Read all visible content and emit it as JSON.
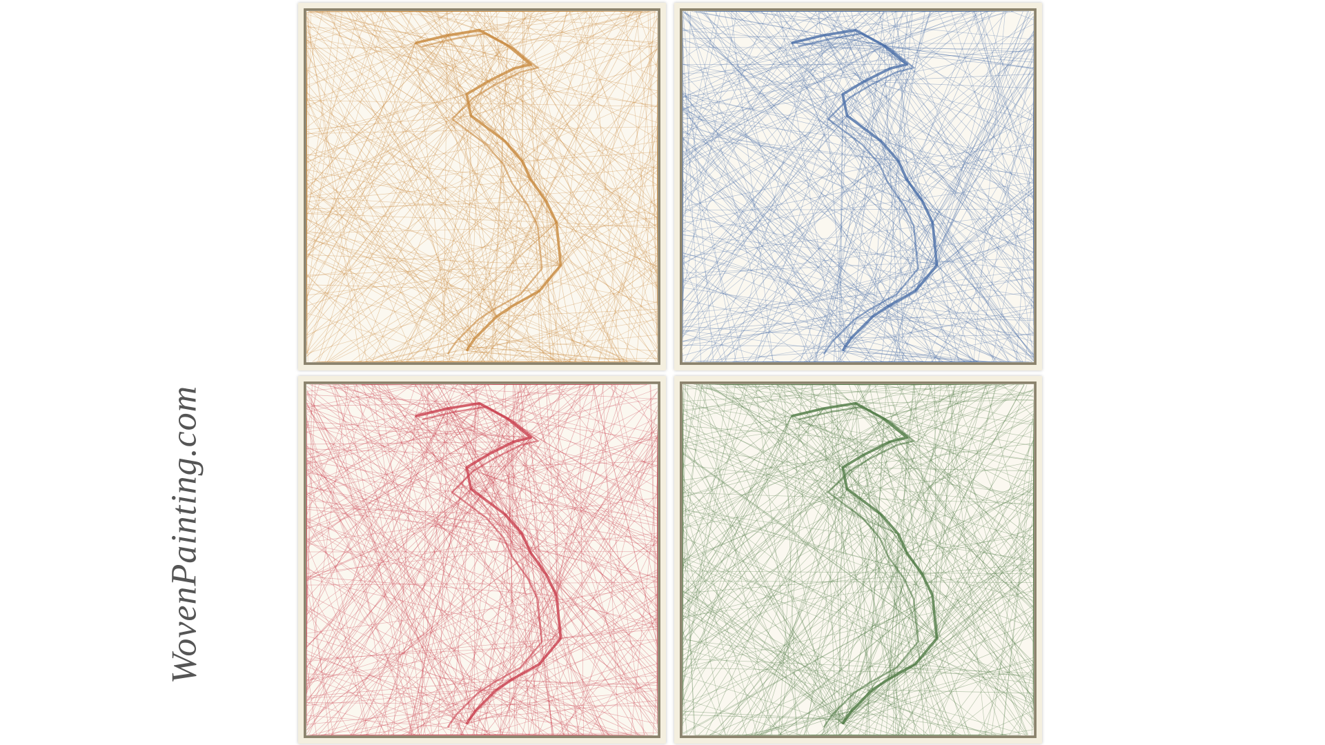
{
  "watermark": "WovenPainting.com"
}
